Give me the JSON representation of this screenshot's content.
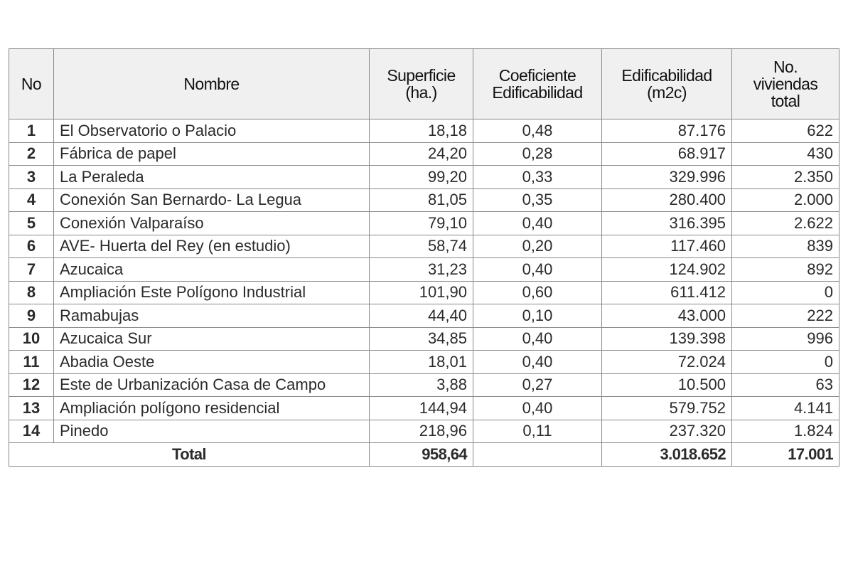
{
  "table": {
    "headers": {
      "no": "No",
      "nombre": "Nombre",
      "superficie": [
        "Superficie",
        "(ha.)"
      ],
      "coeficiente": [
        "Coeficiente",
        "Edificabilidad"
      ],
      "edificabilidad": [
        "Edificabilidad",
        "(m2c)"
      ],
      "viviendas": [
        "No.",
        "viviendas",
        "total"
      ]
    },
    "rows": [
      {
        "no": "1",
        "nombre": "El Observatorio o Palacio",
        "superficie": "18,18",
        "coeficiente": "0,48",
        "edificabilidad": "87.176",
        "viviendas": "622"
      },
      {
        "no": "2",
        "nombre": "Fábrica de papel",
        "superficie": "24,20",
        "coeficiente": "0,28",
        "edificabilidad": "68.917",
        "viviendas": "430"
      },
      {
        "no": "3",
        "nombre": "La Peraleda",
        "superficie": "99,20",
        "coeficiente": "0,33",
        "edificabilidad": "329.996",
        "viviendas": "2.350"
      },
      {
        "no": "4",
        "nombre": "Conexión San Bernardo- La Legua",
        "superficie": "81,05",
        "coeficiente": "0,35",
        "edificabilidad": "280.400",
        "viviendas": "2.000"
      },
      {
        "no": "5",
        "nombre": "Conexión Valparaíso",
        "superficie": "79,10",
        "coeficiente": "0,40",
        "edificabilidad": "316.395",
        "viviendas": "2.622"
      },
      {
        "no": "6",
        "nombre": "AVE- Huerta del Rey (en estudio)",
        "superficie": "58,74",
        "coeficiente": "0,20",
        "edificabilidad": "117.460",
        "viviendas": "839"
      },
      {
        "no": "7",
        "nombre": "Azucaica",
        "superficie": "31,23",
        "coeficiente": "0,40",
        "edificabilidad": "124.902",
        "viviendas": "892"
      },
      {
        "no": "8",
        "nombre": "Ampliación Este Polígono Industrial",
        "superficie": "101,90",
        "coeficiente": "0,60",
        "edificabilidad": "611.412",
        "viviendas": "0"
      },
      {
        "no": "9",
        "nombre": "Ramabujas",
        "superficie": "44,40",
        "coeficiente": "0,10",
        "edificabilidad": "43.000",
        "viviendas": "222"
      },
      {
        "no": "10",
        "nombre": "Azucaica Sur",
        "superficie": "34,85",
        "coeficiente": "0,40",
        "edificabilidad": "139.398",
        "viviendas": "996"
      },
      {
        "no": "11",
        "nombre": "Abadia Oeste",
        "superficie": "18,01",
        "coeficiente": "0,40",
        "edificabilidad": "72.024",
        "viviendas": "0"
      },
      {
        "no": "12",
        "nombre": "Este de Urbanización Casa de Campo",
        "superficie": "3,88",
        "coeficiente": "0,27",
        "edificabilidad": "10.500",
        "viviendas": "63"
      },
      {
        "no": "13",
        "nombre": "Ampliación polígono residencial",
        "superficie": "144,94",
        "coeficiente": "0,40",
        "edificabilidad": "579.752",
        "viviendas": "4.141"
      },
      {
        "no": "14",
        "nombre": "Pinedo",
        "superficie": "218,96",
        "coeficiente": "0,11",
        "edificabilidad": "237.320",
        "viviendas": "1.824"
      }
    ],
    "total": {
      "label": "Total",
      "superficie": "958,64",
      "coeficiente": "",
      "edificabilidad": "3.018.652",
      "viviendas": "17.001"
    }
  }
}
